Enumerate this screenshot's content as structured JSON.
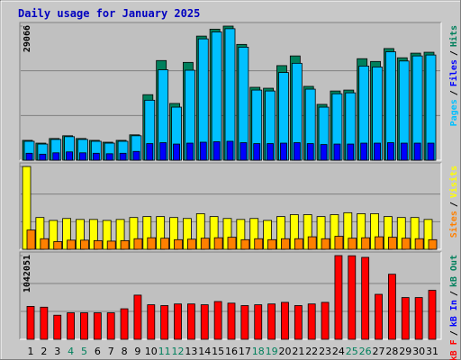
{
  "chart_data": [
    {
      "type": "bar",
      "title": "Daily usage for January 2025",
      "title_color": "#0000c0",
      "ylim": [
        0,
        29066
      ],
      "yticks": [
        29066
      ],
      "grid": true,
      "series": [
        {
          "name": "Hits",
          "color": "#00805c",
          "values": [
            4300,
            3700,
            4700,
            5300,
            4700,
            4300,
            3900,
            4300,
            5500,
            14200,
            21600,
            12300,
            21200,
            26900,
            28400,
            29066,
            25100,
            15800,
            15600,
            20500,
            22600,
            16000,
            12100,
            15000,
            15200,
            22000,
            21400,
            24200,
            22200,
            23200,
            23400
          ]
        },
        {
          "name": "Pages",
          "color": "#00c0ff",
          "values": [
            4100,
            3500,
            4500,
            5100,
            4500,
            4100,
            3700,
            4100,
            5300,
            13000,
            19600,
            11500,
            19500,
            26300,
            27800,
            28500,
            24500,
            15200,
            15000,
            19000,
            21000,
            15400,
            11500,
            14400,
            14600,
            20400,
            20200,
            23500,
            21500,
            22600,
            22800
          ]
        },
        {
          "name": "Files",
          "color": "#0000ff",
          "values": [
            1500,
            1300,
            1600,
            1800,
            1600,
            1500,
            1400,
            1500,
            1900,
            3600,
            3800,
            3500,
            3700,
            3900,
            4000,
            4100,
            3800,
            3600,
            3600,
            3700,
            3800,
            3600,
            3400,
            3500,
            3500,
            3700,
            3700,
            3800,
            3700,
            3700,
            3700
          ]
        }
      ],
      "legend_order": [
        1,
        2,
        0
      ],
      "legend_separator": "/"
    },
    {
      "type": "bar",
      "ylim": [
        0,
        860
      ],
      "yticks": [
        860
      ],
      "grid": true,
      "series": [
        {
          "name": "Visits",
          "color": "#ffff00",
          "values": [
            860,
            330,
            300,
            320,
            310,
            310,
            300,
            310,
            330,
            340,
            340,
            330,
            320,
            370,
            340,
            320,
            310,
            320,
            300,
            340,
            360,
            360,
            340,
            360,
            380,
            370,
            370,
            340,
            330,
            330,
            310
          ]
        },
        {
          "name": "Sites",
          "color": "#ff8000",
          "values": [
            200,
            110,
            80,
            95,
            95,
            90,
            85,
            90,
            110,
            120,
            115,
            100,
            105,
            115,
            120,
            125,
            100,
            110,
            100,
            110,
            110,
            130,
            110,
            135,
            115,
            120,
            130,
            125,
            115,
            110,
            100
          ]
        }
      ],
      "legend_order": [
        1,
        0
      ],
      "legend_separator": "/"
    },
    {
      "type": "bar",
      "ylim": [
        0,
        1042051
      ],
      "yticks": [
        1042051
      ],
      "grid": true,
      "series": [
        {
          "name": "kB F",
          "color": "#ff0000",
          "values": [
            410000,
            400000,
            300000,
            330000,
            330000,
            330000,
            330000,
            380000,
            550000,
            430000,
            420000,
            440000,
            440000,
            430000,
            470000,
            450000,
            420000,
            430000,
            440000,
            460000,
            420000,
            440000,
            460000,
            1042051,
            1040000,
            1020000,
            560000,
            810000,
            520000,
            520000,
            610000
          ]
        },
        {
          "name": "kB In",
          "color": "#0000ff"
        },
        {
          "name": "kB Out",
          "color": "#00805c"
        }
      ],
      "legend_order": [
        0,
        1,
        2
      ],
      "legend_separator": "/",
      "categories": [
        "1",
        "2",
        "3",
        "4",
        "5",
        "6",
        "7",
        "8",
        "9",
        "10",
        "11",
        "12",
        "13",
        "14",
        "15",
        "16",
        "17",
        "18",
        "19",
        "20",
        "21",
        "22",
        "23",
        "24",
        "25",
        "26",
        "27",
        "28",
        "29",
        "30",
        "31"
      ],
      "category_colors": [
        "#000000",
        "#000000",
        "#000000",
        "#00805c",
        "#00805c",
        "#000000",
        "#000000",
        "#000000",
        "#000000",
        "#000000",
        "#00805c",
        "#00805c",
        "#000000",
        "#000000",
        "#000000",
        "#000000",
        "#000000",
        "#00805c",
        "#00805c",
        "#000000",
        "#000000",
        "#000000",
        "#000000",
        "#000000",
        "#00805c",
        "#00805c",
        "#000000",
        "#000000",
        "#000000",
        "#000000",
        "#000000"
      ]
    }
  ]
}
